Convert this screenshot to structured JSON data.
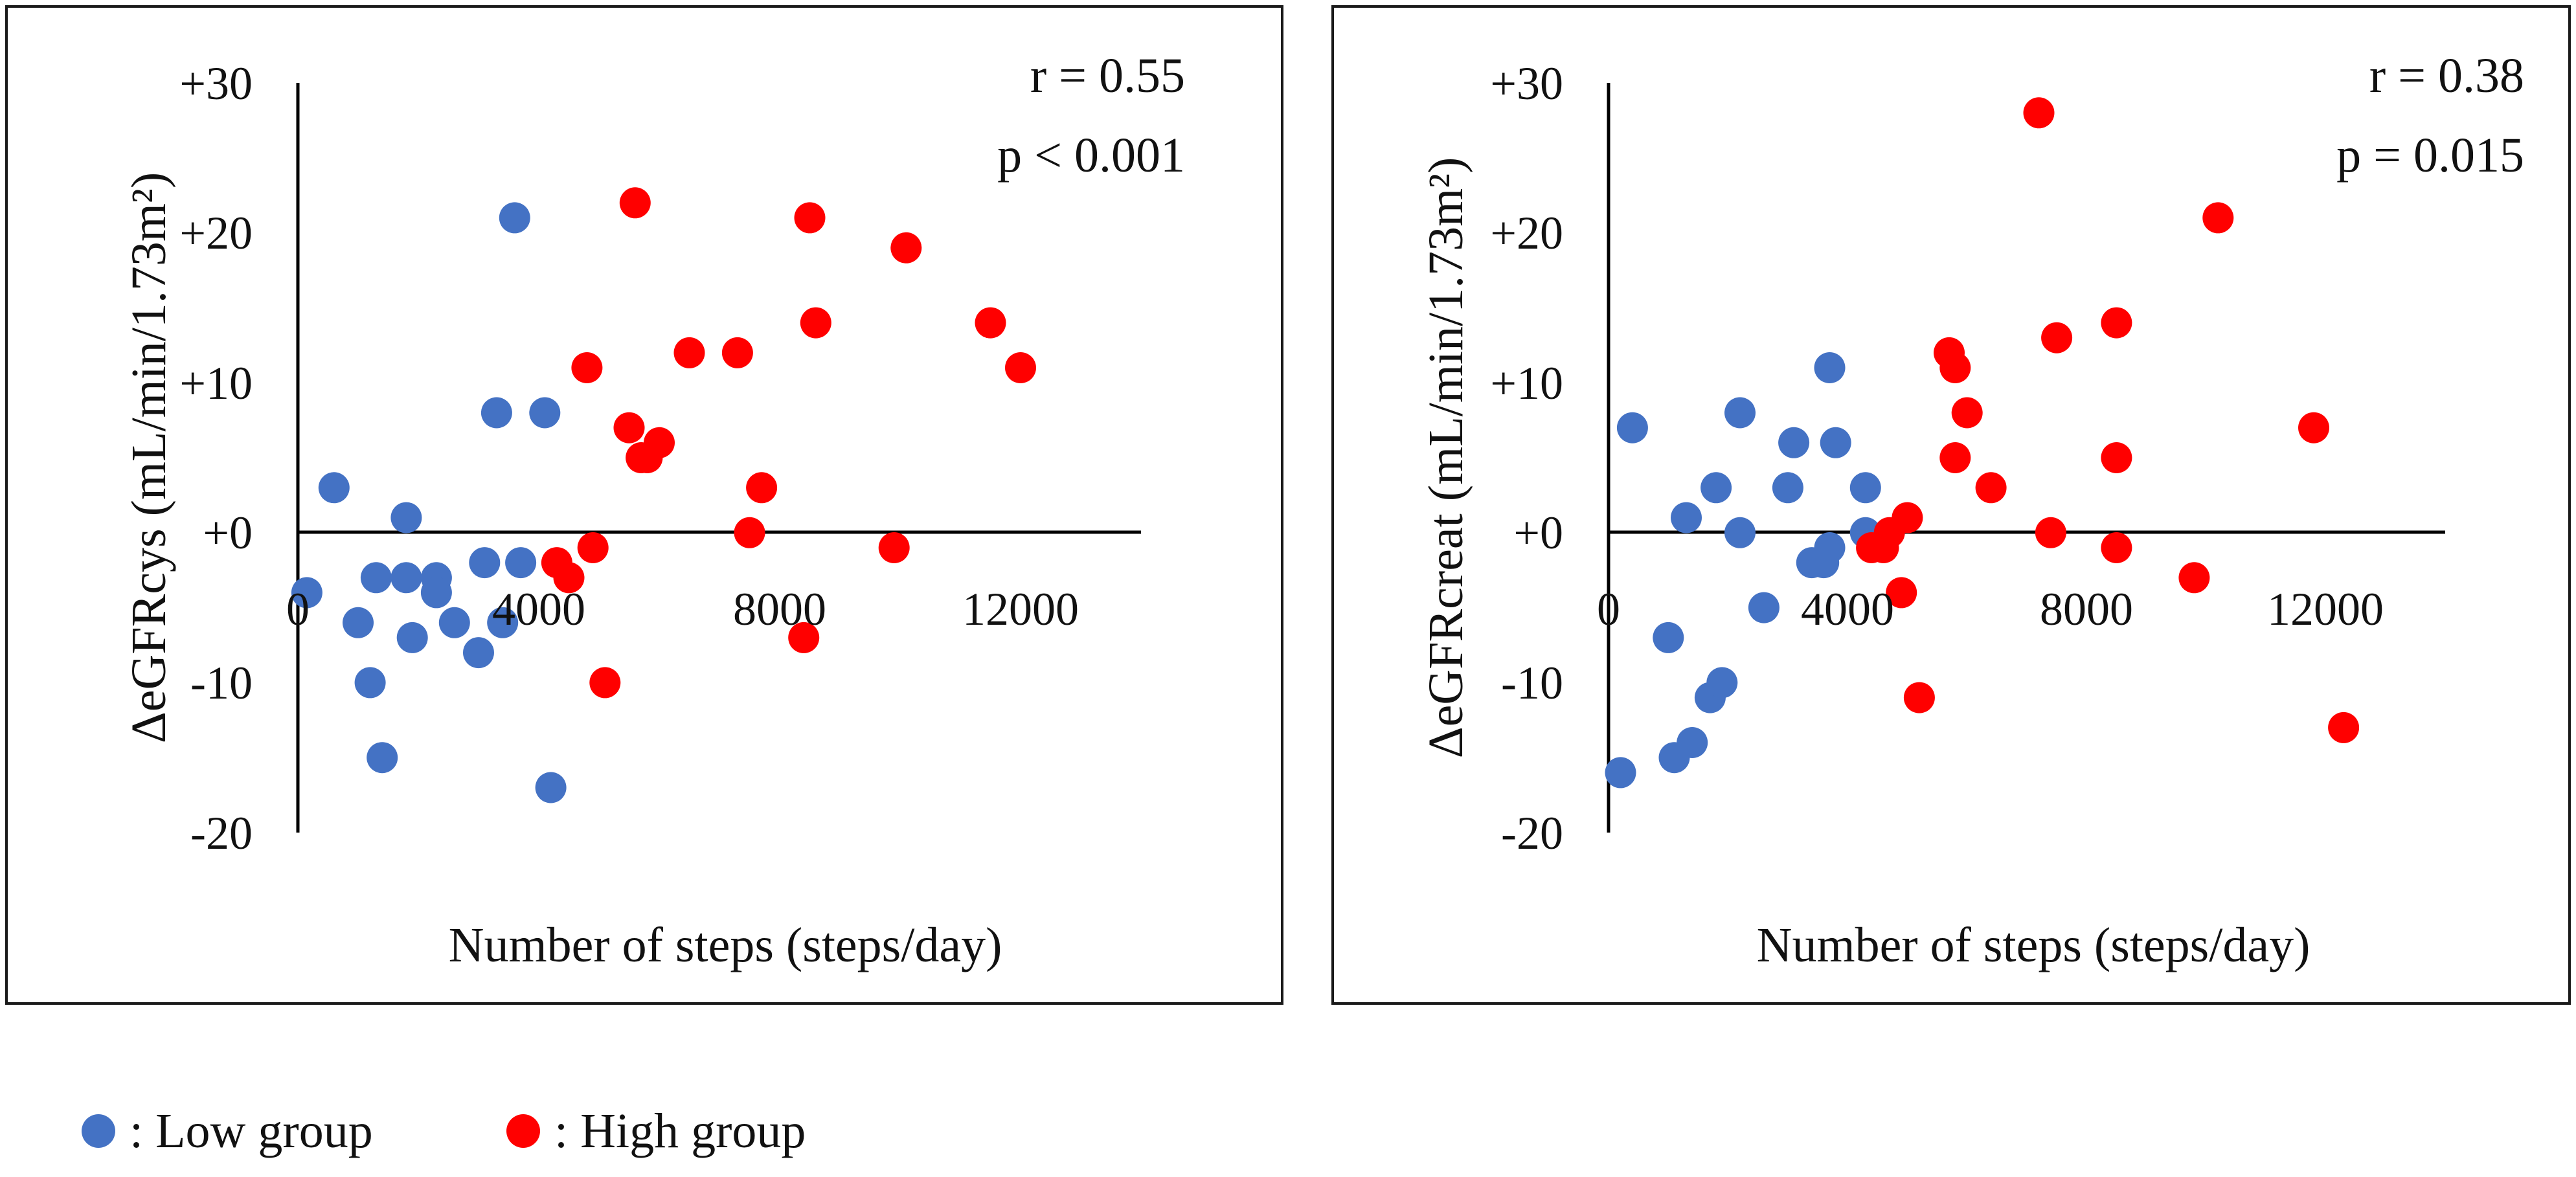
{
  "chart_data": [
    {
      "type": "scatter",
      "panel": "left",
      "ylabel": "ΔeGFRcys (mL/min/1.73m²)",
      "xlabel": "Number of steps (steps/day)",
      "xlim": [
        0,
        14000
      ],
      "ylim": [
        -20,
        30
      ],
      "x_ticks": [
        "0",
        "4000",
        "8000",
        "12000"
      ],
      "y_ticks": [
        "+30",
        "+20",
        "+10",
        "+0",
        "-10",
        "-20"
      ],
      "r_text": "r = 0.55",
      "p_text": "p < 0.001",
      "series": [
        {
          "name": "Low group",
          "color": "#4472C4",
          "points": [
            [
              150,
              -4
            ],
            [
              600,
              3
            ],
            [
              1000,
              -6
            ],
            [
              1200,
              -10
            ],
            [
              1300,
              -3
            ],
            [
              1400,
              -15
            ],
            [
              1800,
              -3
            ],
            [
              1800,
              1
            ],
            [
              1900,
              -7
            ],
            [
              2300,
              -3
            ],
            [
              2300,
              -4
            ],
            [
              2600,
              -6
            ],
            [
              3000,
              -8
            ],
            [
              3100,
              -2
            ],
            [
              3300,
              8
            ],
            [
              3400,
              -6
            ],
            [
              3600,
              21
            ],
            [
              3700,
              -2
            ],
            [
              4100,
              8
            ],
            [
              4200,
              -17
            ]
          ]
        },
        {
          "name": "High group",
          "color": "#FF0000",
          "points": [
            [
              4300,
              -2
            ],
            [
              4500,
              -3
            ],
            [
              4800,
              11
            ],
            [
              4900,
              -1
            ],
            [
              5100,
              -10
            ],
            [
              5500,
              7
            ],
            [
              5600,
              22
            ],
            [
              5700,
              5
            ],
            [
              5800,
              5
            ],
            [
              6000,
              6
            ],
            [
              6500,
              12
            ],
            [
              7300,
              12
            ],
            [
              7500,
              0
            ],
            [
              7700,
              3
            ],
            [
              8400,
              -7
            ],
            [
              8500,
              21
            ],
            [
              8600,
              14
            ],
            [
              9900,
              -1
            ],
            [
              10100,
              19
            ],
            [
              11500,
              14
            ],
            [
              12000,
              11
            ]
          ]
        }
      ]
    },
    {
      "type": "scatter",
      "panel": "right",
      "ylabel": "ΔeGFRcreat (mL/min/1.73m²)",
      "xlabel": "Number of steps (steps/day)",
      "xlim": [
        0,
        14000
      ],
      "ylim": [
        -20,
        30
      ],
      "x_ticks": [
        "0",
        "4000",
        "8000",
        "12000"
      ],
      "y_ticks": [
        "+30",
        "+20",
        "+10",
        "+0",
        "-10",
        "-20"
      ],
      "r_text": "r = 0.38",
      "p_text": "p = 0.015",
      "series": [
        {
          "name": "Low group",
          "color": "#4472C4",
          "points": [
            [
              200,
              -16
            ],
            [
              400,
              7
            ],
            [
              1000,
              -7
            ],
            [
              1100,
              -15
            ],
            [
              1300,
              1
            ],
            [
              1400,
              -14
            ],
            [
              1700,
              -11
            ],
            [
              1800,
              3
            ],
            [
              1900,
              -10
            ],
            [
              2200,
              8
            ],
            [
              2200,
              0
            ],
            [
              2600,
              -5
            ],
            [
              3000,
              3
            ],
            [
              3100,
              6
            ],
            [
              3400,
              -2
            ],
            [
              3600,
              -2
            ],
            [
              3700,
              11
            ],
            [
              3800,
              6
            ],
            [
              3700,
              -1
            ],
            [
              4300,
              3
            ],
            [
              4300,
              0
            ]
          ]
        },
        {
          "name": "High group",
          "color": "#FF0000",
          "points": [
            [
              4400,
              -1
            ],
            [
              4600,
              -1
            ],
            [
              4700,
              0
            ],
            [
              4900,
              -4
            ],
            [
              5000,
              1
            ],
            [
              5200,
              -11
            ],
            [
              5700,
              12
            ],
            [
              5800,
              11
            ],
            [
              5800,
              5
            ],
            [
              6000,
              8
            ],
            [
              6400,
              3
            ],
            [
              7200,
              28
            ],
            [
              7400,
              0
            ],
            [
              7500,
              13
            ],
            [
              8500,
              14
            ],
            [
              8500,
              5
            ],
            [
              8500,
              -1
            ],
            [
              9800,
              -3
            ],
            [
              10200,
              21
            ],
            [
              11800,
              7
            ],
            [
              12300,
              -13
            ]
          ]
        }
      ]
    }
  ],
  "legend": {
    "low_label": ": Low group",
    "high_label": ": High group",
    "low_color": "#4472C4",
    "high_color": "#FF0000"
  }
}
